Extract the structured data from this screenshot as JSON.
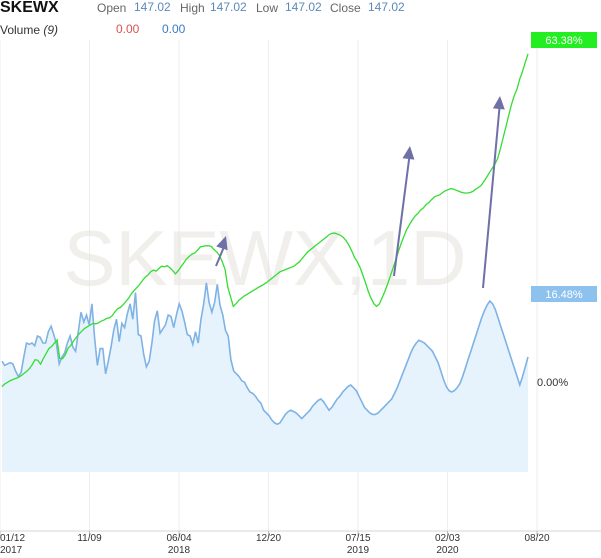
{
  "header": {
    "symbol": "SKEWX",
    "open_label": "Open",
    "open_value": "147.02",
    "high_label": "High",
    "high_value": "147.02",
    "low_label": "Low",
    "low_value": "147.02",
    "close_label": "Close",
    "close_value": "147.02",
    "volume_label": "Volume",
    "volume_period": "(9)",
    "volume_value_1": "0.00",
    "volume_value_2": "0.00"
  },
  "watermark": "SKEWX,1D",
  "colors": {
    "price_line": "#33dd33",
    "volume_line": "#7fb2e5",
    "volume_fill": "#e6f3fd",
    "arrow": "#6f70a6"
  },
  "chart_data": {
    "type": "line",
    "x_ticks": [
      {
        "label": "01/12",
        "year": "2017"
      },
      {
        "label": "11/09",
        "year": ""
      },
      {
        "label": "06/04",
        "year": "2018"
      },
      {
        "label": "12/20",
        "year": ""
      },
      {
        "label": "07/15",
        "year": "2019"
      },
      {
        "label": "02/03",
        "year": "2020"
      },
      {
        "label": "08/20",
        "year": ""
      }
    ],
    "y_ticks": [
      "0.00%"
    ],
    "series": [
      {
        "end_label": "63.38%",
        "values": [
          -3,
          2,
          5,
          8,
          10,
          12,
          14,
          17,
          21,
          25,
          30,
          37,
          46,
          45,
          38,
          48,
          57,
          66,
          70,
          76,
          82,
          48,
          48,
          55,
          67,
          72,
          80,
          87,
          93,
          98,
          103,
          106,
          109,
          112,
          111,
          113,
          116,
          118,
          121,
          122,
          126,
          133,
          139,
          141,
          146,
          152,
          158,
          166,
          172,
          177,
          183,
          190,
          196,
          200,
          206,
          209,
          207,
          212,
          216,
          215,
          217,
          213,
          208,
          202,
          208,
          215,
          222,
          229,
          234,
          238,
          240,
          245,
          251,
          252,
          253,
          253,
          252,
          246,
          242,
          235,
          224,
          210,
          178,
          160,
          143,
          148,
          154,
          158,
          162,
          165,
          168,
          171,
          174,
          177,
          180,
          183,
          186,
          190,
          194,
          198,
          202,
          206,
          208,
          210,
          212,
          214,
          216,
          220,
          224,
          230,
          236,
          242,
          246,
          250,
          254,
          258,
          262,
          266,
          270,
          274,
          276,
          276,
          274,
          272,
          268,
          262,
          254,
          244,
          232,
          224,
          214,
          200,
          186,
          170,
          158,
          148,
          143,
          147,
          158,
          170,
          183,
          198,
          213,
          228,
          244,
          258,
          271,
          283,
          292,
          300,
          307,
          312,
          318,
          322,
          328,
          332,
          337,
          342,
          344,
          346,
          350,
          353,
          355,
          357,
          356,
          354,
          352,
          350,
          349,
          349,
          350,
          352,
          356,
          359,
          363,
          370,
          378,
          386,
          394,
          402,
          412,
          430,
          450,
          470,
          490,
          510,
          526,
          538,
          556,
          570,
          586,
          602
        ]
      },
      {
        "end_label": "16.48%",
        "values": [
          17,
          14,
          15,
          16,
          15,
          10,
          6,
          9,
          20,
          30,
          29,
          30,
          28,
          35,
          34,
          30,
          30,
          38,
          42,
          36,
          29,
          15,
          20,
          23,
          30,
          35,
          27,
          24,
          38,
          52,
          45,
          50,
          43,
          58,
          33,
          14,
          26,
          26,
          8,
          17,
          27,
          39,
          47,
          31,
          44,
          41,
          51,
          58,
          47,
          66,
          36,
          35,
          22,
          13,
          17,
          30,
          46,
          53,
          37,
          40,
          43,
          50,
          49,
          41,
          50,
          58,
          53,
          45,
          36,
          35,
          29,
          38,
          30,
          47,
          58,
          73,
          59,
          52,
          59,
          72,
          57,
          50,
          39,
          35,
          18,
          10,
          8,
          6,
          3,
          2,
          -2,
          -5,
          -6,
          -8,
          -11,
          -13,
          -18,
          -20,
          -22,
          -25,
          -27,
          -28,
          -27,
          -24,
          -21,
          -19,
          -18,
          -19,
          -20,
          -22,
          -24,
          -22,
          -20,
          -18,
          -15,
          -13,
          -11,
          -10,
          -12,
          -15,
          -18,
          -16,
          -13,
          -10,
          -8,
          -5,
          -3,
          -1,
          0,
          -2,
          -4,
          -8,
          -12,
          -16,
          -18,
          -20,
          -21,
          -21,
          -20,
          -18,
          -16,
          -14,
          -12,
          -10,
          -6,
          -2,
          3,
          8,
          13,
          18,
          23,
          27,
          30,
          32,
          31,
          30,
          28,
          26,
          24,
          20,
          16,
          10,
          4,
          -1,
          -4,
          -5,
          -4,
          -2,
          1,
          6,
          12,
          18,
          24,
          30,
          36,
          42,
          48,
          53,
          57,
          60,
          58,
          54,
          48,
          42,
          36,
          30,
          24,
          18,
          12,
          6,
          0,
          6,
          13,
          20
        ]
      }
    ]
  }
}
